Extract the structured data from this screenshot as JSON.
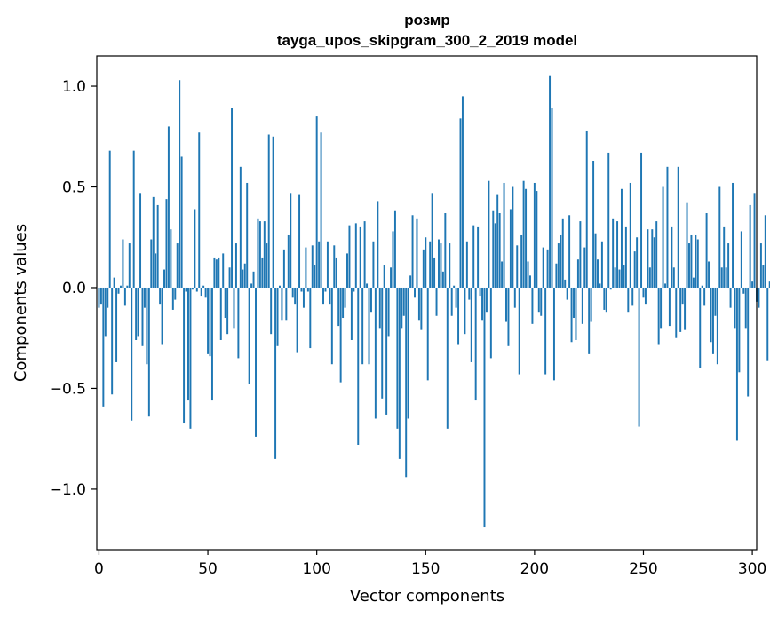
{
  "chart_data": {
    "type": "bar",
    "title_line1": "розмр",
    "title_line2": "tayga_upos_skipgram_300_2_2019 model",
    "xlabel": "Vector components",
    "ylabel": "Components values",
    "xlim": [
      -1,
      302
    ],
    "ylim": [
      -1.3,
      1.15
    ],
    "xticks": [
      0,
      50,
      100,
      150,
      200,
      250,
      300
    ],
    "xtick_labels": [
      "0",
      "50",
      "100",
      "150",
      "200",
      "250",
      "300"
    ],
    "yticks": [
      -1.0,
      -0.5,
      0.0,
      0.5,
      1.0
    ],
    "ytick_labels": [
      "−1.0",
      "−0.5",
      "0.0",
      "0.5",
      "1.0"
    ],
    "bar_color": "#1f77b4",
    "values": [
      -0.1,
      -0.08,
      -0.59,
      -0.24,
      -0.1,
      0.68,
      -0.53,
      0.05,
      -0.37,
      -0.03,
      0.01,
      0.24,
      -0.09,
      0.01,
      0.22,
      -0.66,
      0.68,
      -0.26,
      -0.24,
      0.47,
      -0.29,
      -0.1,
      -0.38,
      -0.64,
      0.24,
      0.45,
      0.17,
      0.41,
      -0.08,
      -0.28,
      0.09,
      0.44,
      0.8,
      0.29,
      -0.11,
      -0.06,
      0.22,
      1.03,
      0.65,
      -0.67,
      -0.02,
      -0.56,
      -0.7,
      -0.01,
      0.39,
      -0.02,
      0.77,
      -0.04,
      0.01,
      -0.05,
      -0.33,
      -0.34,
      -0.56,
      0.15,
      0.14,
      0.15,
      -0.26,
      0.17,
      -0.15,
      -0.23,
      0.1,
      0.89,
      -0.2,
      0.22,
      -0.35,
      0.6,
      0.09,
      0.12,
      0.52,
      -0.48,
      0.02,
      0.08,
      -0.74,
      0.34,
      0.33,
      0.15,
      0.33,
      0.22,
      0.76,
      -0.23,
      0.75,
      -0.85,
      -0.29,
      0.01,
      -0.16,
      0.19,
      -0.16,
      0.26,
      0.47,
      -0.05,
      -0.08,
      -0.32,
      0.46,
      -0.02,
      -0.1,
      0.2,
      -0.02,
      -0.3,
      0.21,
      0.11,
      0.85,
      0.23,
      0.77,
      -0.08,
      -0.02,
      0.23,
      -0.08,
      -0.38,
      0.21,
      0.15,
      -0.19,
      -0.47,
      -0.15,
      -0.1,
      0.17,
      0.31,
      -0.26,
      -0.02,
      0.32,
      -0.78,
      0.3,
      -0.38,
      0.33,
      0.02,
      -0.38,
      -0.12,
      0.23,
      -0.65,
      0.43,
      -0.2,
      -0.55,
      0.11,
      -0.63,
      -0.24,
      0.1,
      0.28,
      0.38,
      -0.7,
      -0.85,
      -0.2,
      -0.14,
      -0.94,
      -0.65,
      0.06,
      0.36,
      -0.05,
      0.34,
      -0.16,
      -0.21,
      0.19,
      0.25,
      -0.46,
      0.23,
      0.47,
      0.15,
      -0.14,
      0.24,
      0.22,
      0.08,
      0.37,
      -0.7,
      0.22,
      -0.14,
      0.01,
      -0.1,
      -0.28,
      0.84,
      0.95,
      -0.23,
      0.23,
      -0.06,
      -0.37,
      0.31,
      -0.56,
      0.3,
      -0.04,
      -0.16,
      -1.19,
      -0.12,
      0.53,
      -0.35,
      0.38,
      0.32,
      0.46,
      0.37,
      0.13,
      0.52,
      -0.17,
      -0.29,
      0.39,
      0.5,
      -0.1,
      0.21,
      -0.43,
      0.26,
      0.53,
      0.49,
      0.13,
      0.06,
      -0.18,
      0.52,
      0.48,
      -0.12,
      -0.14,
      0.2,
      -0.43,
      0.19,
      1.05,
      0.89,
      -0.46,
      0.12,
      0.22,
      0.26,
      0.34,
      0.04,
      -0.06,
      0.36,
      -0.27,
      -0.15,
      -0.26,
      0.14,
      0.33,
      -0.18,
      0.2,
      0.78,
      -0.33,
      -0.17,
      0.63,
      0.27,
      0.14,
      0.02,
      0.23,
      -0.11,
      -0.12,
      0.67,
      -0.01,
      0.34,
      0.1,
      0.33,
      0.09,
      0.49,
      0.11,
      0.3,
      -0.12,
      0.52,
      -0.09,
      0.18,
      0.25,
      -0.69,
      0.67,
      -0.05,
      -0.08,
      0.29,
      0.1,
      0.29,
      0.25,
      0.33,
      -0.28,
      -0.2,
      0.5,
      0.02,
      0.6,
      -0.19,
      0.3,
      0.1,
      -0.25,
      0.6,
      -0.22,
      -0.08,
      -0.21,
      0.42,
      0.22,
      0.26,
      0.05,
      0.26,
      0.24,
      -0.4,
      0.01,
      -0.09,
      0.37,
      0.13,
      -0.27,
      -0.33,
      -0.14,
      -0.38,
      0.5,
      0.1,
      0.3,
      0.1,
      0.22,
      -0.1,
      0.52,
      -0.2,
      -0.76,
      -0.42,
      0.28,
      -0.03,
      -0.2,
      -0.54,
      0.41,
      0.03,
      0.47,
      -0.07,
      -0.1,
      0.22,
      0.11,
      0.36,
      -0.36,
      0.03
    ]
  }
}
